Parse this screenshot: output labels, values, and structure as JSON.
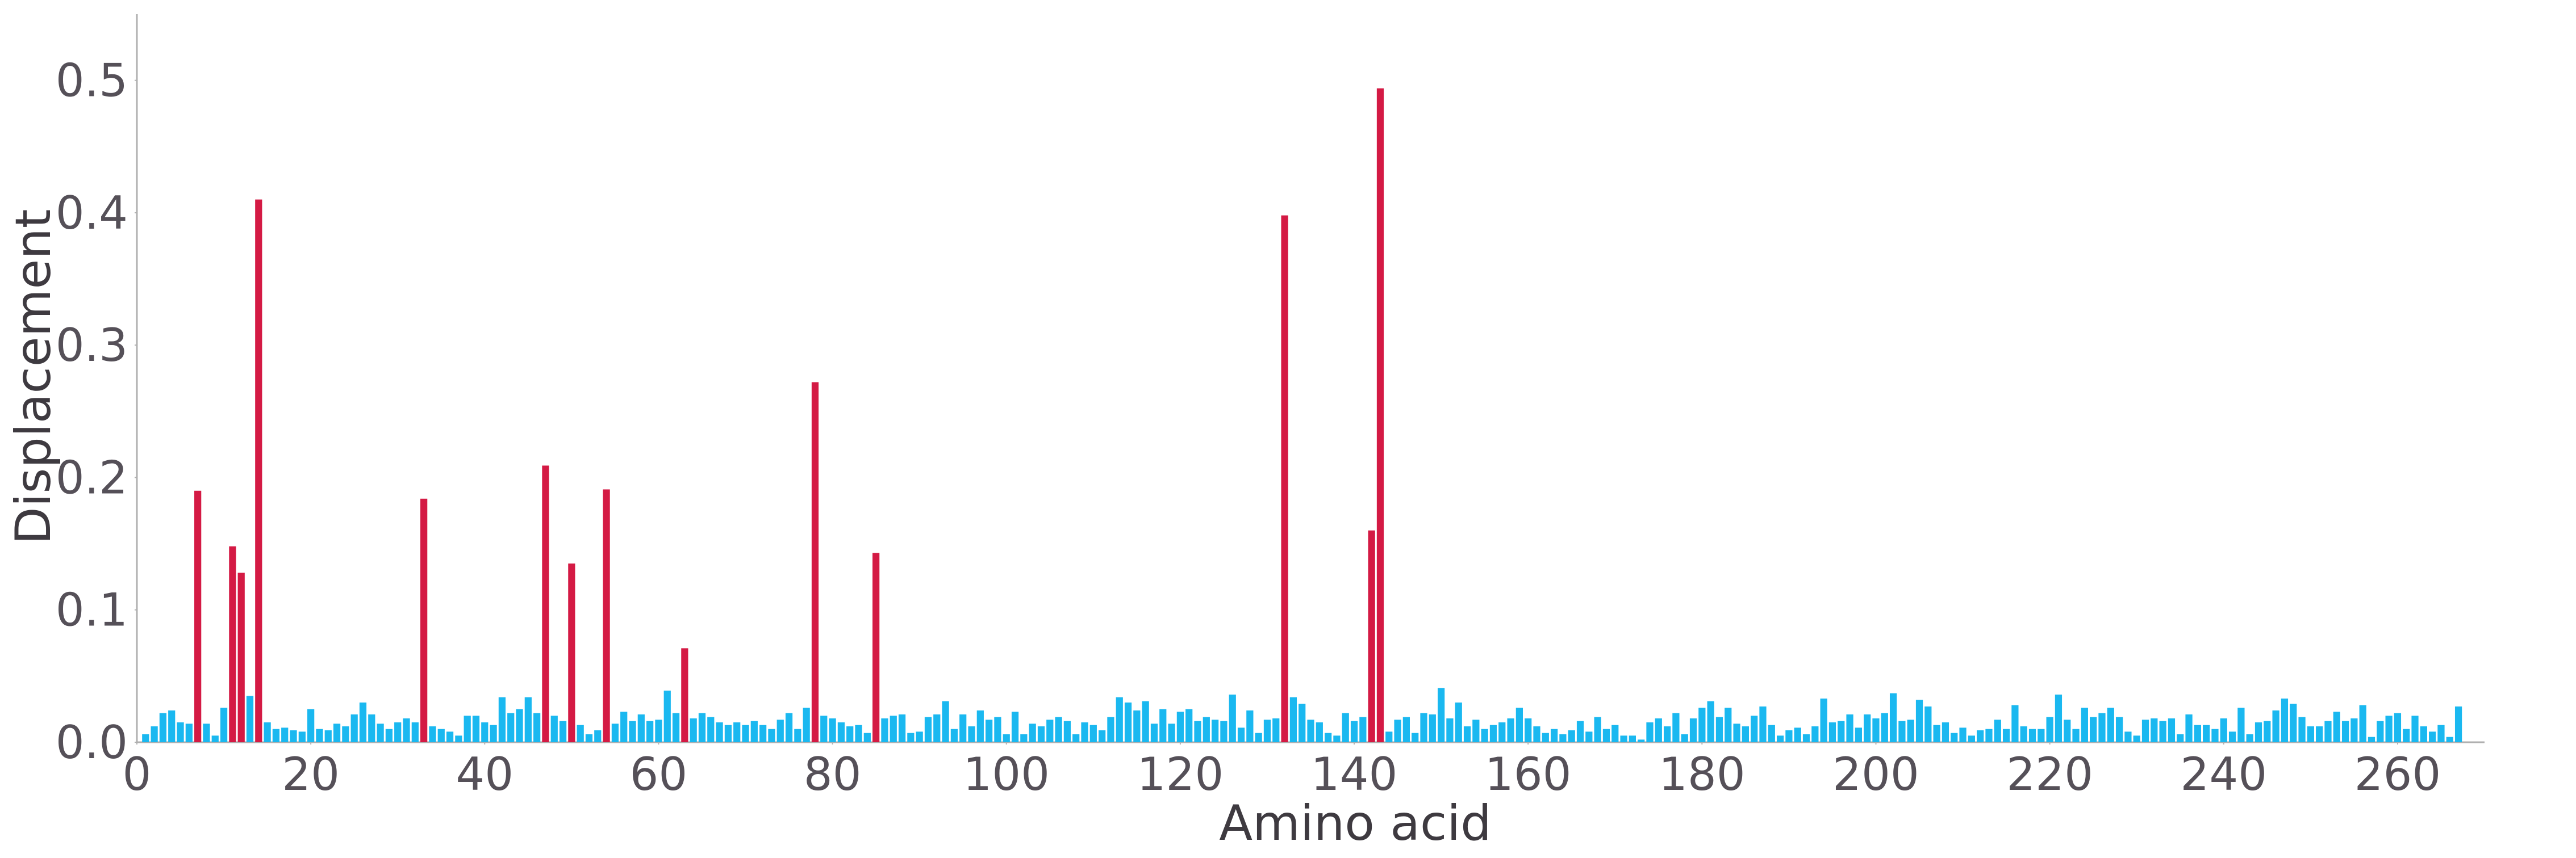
{
  "chart_data": {
    "type": "bar",
    "x_label": "Amino acid",
    "y_label": "Displacement",
    "xlim": [
      0,
      270
    ],
    "ylim": [
      0,
      0.55
    ],
    "xticks": [
      0,
      20,
      40,
      60,
      80,
      100,
      120,
      140,
      160,
      180,
      200,
      220,
      240,
      260
    ],
    "yticks": [
      {
        "value": 0,
        "label": "0.0"
      },
      0.1,
      0.2,
      0.3,
      0.4,
      0.5
    ],
    "grid": false,
    "series": [
      {
        "color": "#1ab8f0",
        "x": [
          1,
          2,
          3,
          4,
          5,
          6,
          8,
          9,
          10,
          13,
          15,
          16,
          17,
          18,
          19,
          20,
          21,
          22,
          23,
          24,
          25,
          26,
          27,
          28,
          29,
          30,
          31,
          32,
          34,
          35,
          36,
          37,
          38,
          39,
          40,
          41,
          42,
          43,
          44,
          45,
          46,
          48,
          49,
          51,
          52,
          53,
          55,
          56,
          57,
          58,
          59,
          60,
          61,
          62,
          64,
          65,
          66,
          67,
          68,
          69,
          70,
          71,
          72,
          73,
          74,
          75,
          76,
          77,
          79,
          80,
          81,
          82,
          83,
          84,
          86,
          87,
          88,
          89,
          90,
          91,
          92,
          93,
          94,
          95,
          96,
          97,
          98,
          99,
          100,
          101,
          102,
          103,
          104,
          105,
          106,
          107,
          108,
          109,
          110,
          111,
          112,
          113,
          114,
          115,
          116,
          117,
          118,
          119,
          120,
          121,
          122,
          123,
          124,
          125,
          126,
          127,
          128,
          129,
          130,
          131,
          133,
          134,
          135,
          136,
          137,
          138,
          139,
          140,
          141,
          144,
          145,
          146,
          147,
          148,
          149,
          150,
          151,
          152,
          153,
          154,
          155,
          156,
          157,
          158,
          159,
          160,
          161,
          162,
          163,
          164,
          165,
          166,
          167,
          168,
          169,
          170,
          171,
          172,
          173,
          174,
          175,
          176,
          177,
          178,
          179,
          180,
          181,
          182,
          183,
          184,
          185,
          186,
          187,
          188,
          189,
          190,
          191,
          192,
          193,
          194,
          195,
          196,
          197,
          198,
          199,
          200,
          201,
          202,
          203,
          204,
          205,
          206,
          207,
          208,
          209,
          210,
          211,
          212,
          213,
          214,
          215,
          216,
          217,
          218,
          219,
          220,
          221,
          222,
          223,
          224,
          225,
          226,
          227,
          228,
          229,
          230,
          231,
          232,
          233,
          234,
          235,
          236,
          237,
          238,
          239,
          240,
          241,
          242,
          243,
          244,
          245,
          246,
          247,
          248,
          249,
          250,
          251,
          252,
          253,
          254,
          255,
          256,
          257,
          258,
          259,
          260,
          261,
          262,
          263,
          264,
          265,
          266,
          267
        ],
        "values": [
          0.006,
          0.012,
          0.022,
          0.024,
          0.015,
          0.014,
          0.014,
          0.005,
          0.026,
          0.035,
          0.015,
          0.01,
          0.011,
          0.009,
          0.008,
          0.025,
          0.01,
          0.009,
          0.014,
          0.012,
          0.021,
          0.03,
          0.021,
          0.014,
          0.01,
          0.015,
          0.018,
          0.015,
          0.012,
          0.01,
          0.008,
          0.005,
          0.02,
          0.02,
          0.015,
          0.013,
          0.034,
          0.022,
          0.025,
          0.034,
          0.022,
          0.02,
          0.016,
          0.013,
          0.006,
          0.009,
          0.014,
          0.023,
          0.016,
          0.021,
          0.016,
          0.017,
          0.039,
          0.022,
          0.018,
          0.022,
          0.019,
          0.015,
          0.013,
          0.015,
          0.013,
          0.016,
          0.013,
          0.01,
          0.017,
          0.022,
          0.01,
          0.026,
          0.02,
          0.018,
          0.015,
          0.012,
          0.013,
          0.007,
          0.018,
          0.02,
          0.021,
          0.007,
          0.008,
          0.019,
          0.021,
          0.031,
          0.01,
          0.021,
          0.012,
          0.024,
          0.017,
          0.019,
          0.006,
          0.023,
          0.006,
          0.014,
          0.012,
          0.017,
          0.019,
          0.016,
          0.006,
          0.015,
          0.013,
          0.009,
          0.019,
          0.034,
          0.03,
          0.024,
          0.031,
          0.014,
          0.025,
          0.014,
          0.023,
          0.025,
          0.016,
          0.019,
          0.017,
          0.016,
          0.036,
          0.011,
          0.024,
          0.007,
          0.017,
          0.018,
          0.034,
          0.029,
          0.017,
          0.015,
          0.007,
          0.005,
          0.022,
          0.016,
          0.019,
          0.008,
          0.017,
          0.019,
          0.007,
          0.022,
          0.021,
          0.041,
          0.018,
          0.03,
          0.012,
          0.017,
          0.01,
          0.013,
          0.015,
          0.018,
          0.026,
          0.018,
          0.012,
          0.007,
          0.01,
          0.006,
          0.009,
          0.016,
          0.008,
          0.019,
          0.01,
          0.013,
          0.005,
          0.005,
          0.002,
          0.015,
          0.018,
          0.012,
          0.022,
          0.006,
          0.018,
          0.026,
          0.031,
          0.019,
          0.026,
          0.014,
          0.012,
          0.02,
          0.027,
          0.013,
          0.005,
          0.009,
          0.011,
          0.006,
          0.012,
          0.033,
          0.015,
          0.016,
          0.021,
          0.011,
          0.021,
          0.018,
          0.022,
          0.037,
          0.016,
          0.017,
          0.032,
          0.027,
          0.013,
          0.015,
          0.007,
          0.011,
          0.005,
          0.009,
          0.01,
          0.017,
          0.01,
          0.028,
          0.012,
          0.01,
          0.01,
          0.019,
          0.036,
          0.017,
          0.01,
          0.026,
          0.019,
          0.022,
          0.026,
          0.019,
          0.008,
          0.005,
          0.017,
          0.018,
          0.016,
          0.018,
          0.006,
          0.021,
          0.013,
          0.013,
          0.01,
          0.018,
          0.008,
          0.026,
          0.006,
          0.015,
          0.016,
          0.024,
          0.033,
          0.029,
          0.019,
          0.012,
          0.012,
          0.016,
          0.023,
          0.016,
          0.018,
          0.028,
          0.004,
          0.016,
          0.02,
          0.022,
          0.01,
          0.02,
          0.012,
          0.008,
          0.013,
          0.004,
          0.027
        ]
      },
      {
        "color": "#d41a44",
        "x": [
          7,
          11,
          12,
          14,
          33,
          47,
          50,
          54,
          63,
          78,
          85,
          132,
          142,
          143
        ],
        "values": [
          0.19,
          0.148,
          0.128,
          0.41,
          0.184,
          0.209,
          0.135,
          0.191,
          0.071,
          0.272,
          0.143,
          0.398,
          0.16,
          0.494
        ]
      }
    ]
  }
}
